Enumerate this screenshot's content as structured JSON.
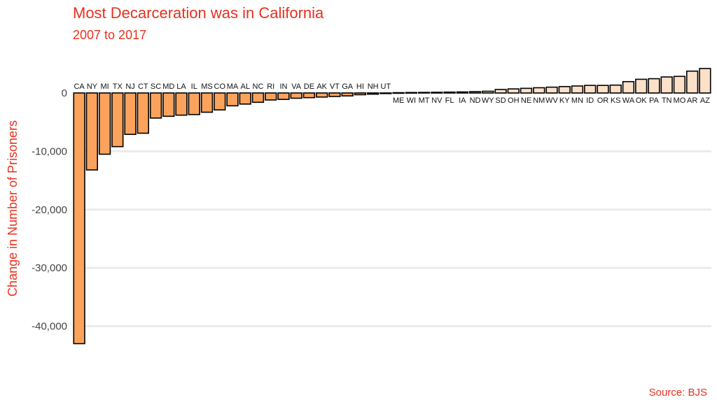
{
  "title": "Most Decarceration was in California",
  "subtitle": "2007 to 2017",
  "source": "Source: BJS",
  "colors": {
    "text_accent": "#e8311e",
    "negative_bar": "#fba35c",
    "positive_bar": "#fde0c8",
    "bar_stroke": "#000000",
    "grid": "#ebebeb"
  },
  "chart_data": {
    "type": "bar",
    "ylabel": "Change in Number of Prisoners",
    "ylim": [
      -45000,
      5000
    ],
    "yticks": [
      0,
      -10000,
      -20000,
      -30000,
      -40000
    ],
    "ytick_labels": [
      "0",
      "-10,000",
      "-20,000",
      "-30,000",
      "-40,000"
    ],
    "grid": true,
    "categories": [
      "CA",
      "NY",
      "MI",
      "TX",
      "NJ",
      "CT",
      "SC",
      "MD",
      "LA",
      "IL",
      "MS",
      "CO",
      "MA",
      "AL",
      "NC",
      "RI",
      "IN",
      "VA",
      "DE",
      "AK",
      "VT",
      "GA",
      "HI",
      "NH",
      "UT",
      "ME",
      "WI",
      "MT",
      "NV",
      "FL",
      "IA",
      "ND",
      "WY",
      "SD",
      "OH",
      "NE",
      "NM",
      "WV",
      "KY",
      "MN",
      "ID",
      "OR",
      "KS",
      "WA",
      "OK",
      "PA",
      "TN",
      "MO",
      "AR",
      "AZ"
    ],
    "values": [
      -43000,
      -13200,
      -10500,
      -9200,
      -7100,
      -6900,
      -4300,
      -4000,
      -3800,
      -3700,
      -3300,
      -2900,
      -2200,
      -1900,
      -1600,
      -1200,
      -1100,
      -900,
      -800,
      -700,
      -600,
      -500,
      -300,
      -200,
      -100,
      50,
      80,
      100,
      120,
      150,
      180,
      230,
      300,
      600,
      700,
      800,
      900,
      1000,
      1100,
      1200,
      1300,
      1300,
      1350,
      1950,
      2350,
      2450,
      2750,
      2850,
      3750,
      4200
    ]
  }
}
